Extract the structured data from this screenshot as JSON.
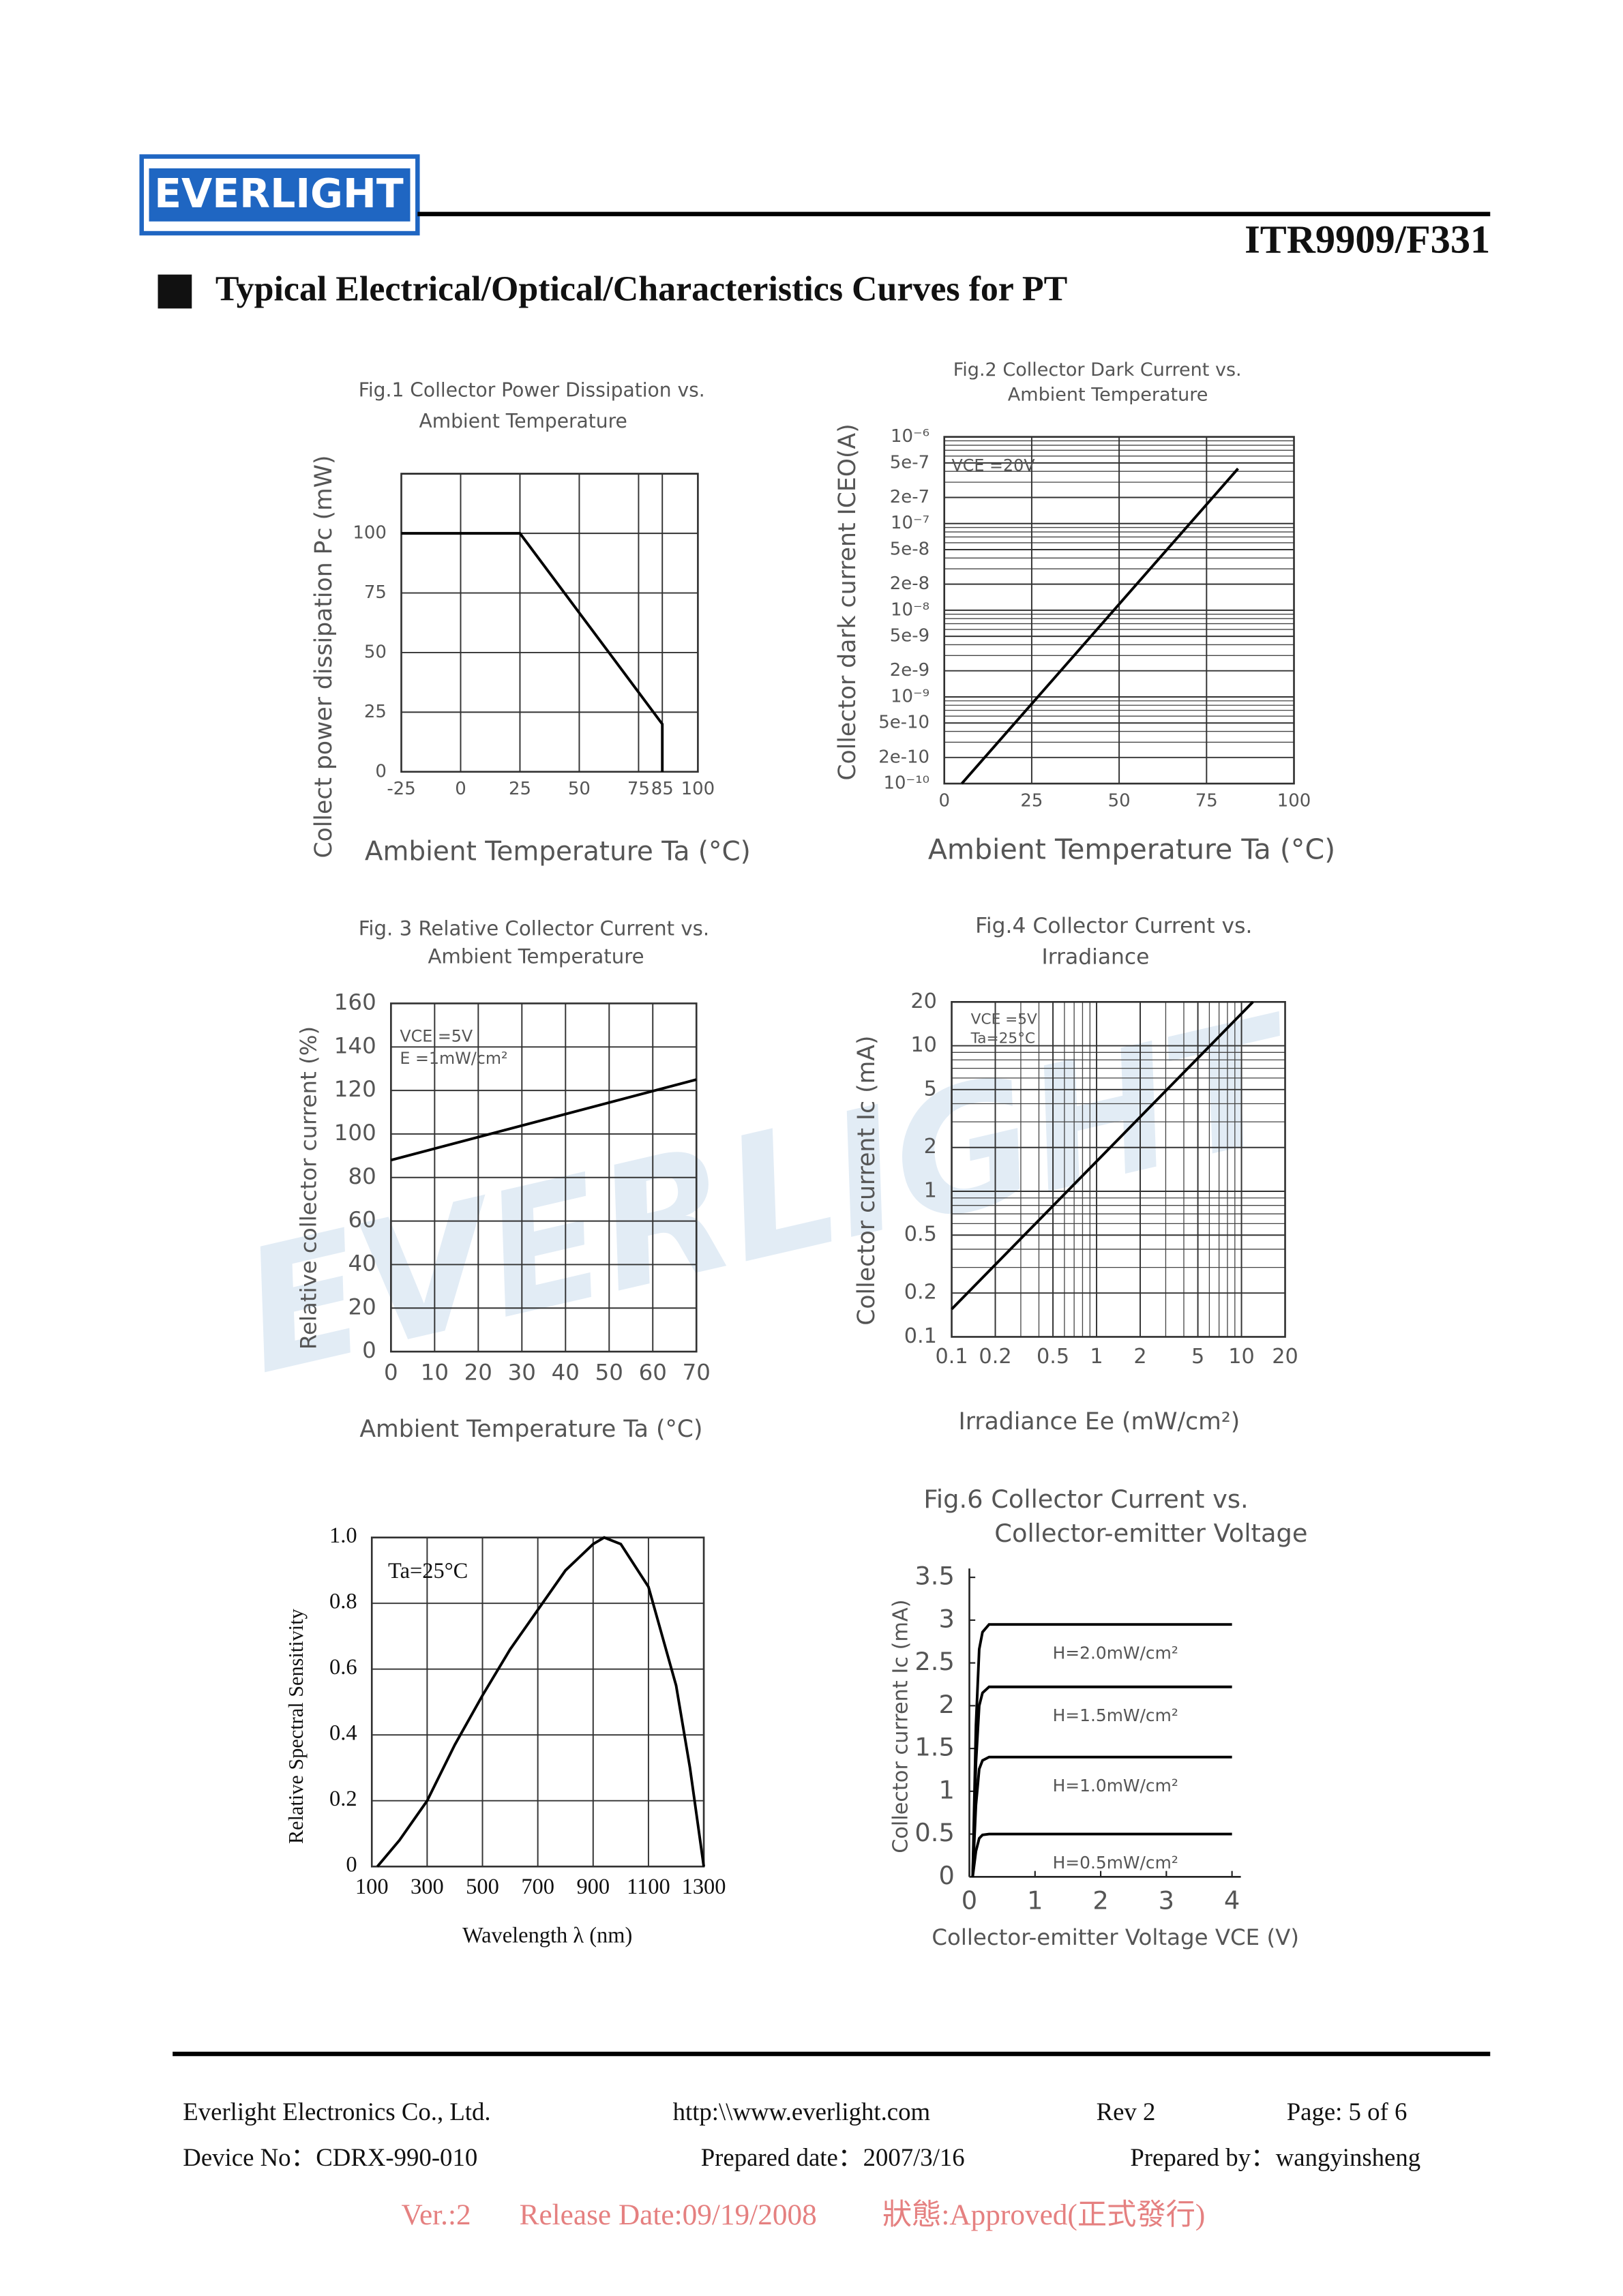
{
  "header": {
    "logo": "EVERLIGHT",
    "part_number": "ITR9909/F331",
    "section_title": "Typical Electrical/Optical/Characteristics Curves for PT"
  },
  "watermark": "EVERLIGHT",
  "chart_data": [
    {
      "type": "line",
      "title": [
        "Fig.1 Collector Power Dissipation vs.",
        "Ambient Temperature"
      ],
      "xlabel": "Ambient Temperature Ta (°C)",
      "ylabel": "Collect power dissipation Pc (mW)",
      "x": [
        -25,
        25,
        85,
        85
      ],
      "values": [
        100,
        100,
        20,
        0
      ],
      "color": "#000000",
      "xlim": [
        -25,
        100
      ],
      "xticks": [
        -25,
        0,
        25,
        50,
        75,
        85,
        100
      ],
      "ylim": [
        0,
        125
      ],
      "yticks": [
        0,
        25,
        50,
        75,
        100
      ],
      "grid": true
    },
    {
      "type": "line",
      "title": [
        "Fig.2 Collector Dark Current vs.",
        "Ambient Temperature"
      ],
      "xlabel": "Ambient Temperature Ta (°C)",
      "ylabel": "Collector dark current ICEO(A)",
      "annotations": [
        "VCE =20V"
      ],
      "x": [
        5,
        84
      ],
      "values": [
        1e-10,
        4.3e-07
      ],
      "color": "#000000",
      "xlim": [
        0,
        100
      ],
      "xticks": [
        0,
        25,
        50,
        75,
        100
      ],
      "ylim": [
        1e-10,
        1e-06
      ],
      "yscale": "log",
      "yticks": [
        {
          "value": 1e-06,
          "label": "10⁻⁶"
        },
        5e-07,
        2e-07,
        {
          "value": 1e-07,
          "label": "10⁻⁷"
        },
        5e-08,
        2e-08,
        {
          "value": 1e-08,
          "label": "10⁻⁸"
        },
        5e-09,
        2e-09,
        {
          "value": 1e-09,
          "label": "10⁻⁹"
        },
        5e-10,
        2e-10,
        {
          "value": 1e-10,
          "label": "10⁻¹⁰"
        }
      ],
      "grid": true
    },
    {
      "type": "line",
      "title": [
        "Fig. 3 Relative Collector Current vs.",
        "Ambient Temperature"
      ],
      "xlabel": "Ambient Temperature Ta (°C)",
      "ylabel": "Relative collector current (%)",
      "annotations": [
        "VCE =5V",
        "E =1mW/cm²"
      ],
      "x": [
        0,
        70
      ],
      "values": [
        88,
        125
      ],
      "color": "#000000",
      "xlim": [
        0,
        70
      ],
      "xticks": [
        0,
        10,
        20,
        30,
        40,
        50,
        60,
        70
      ],
      "ylim": [
        0,
        160
      ],
      "yticks": [
        0,
        20,
        40,
        60,
        80,
        100,
        120,
        140,
        160
      ],
      "grid": true
    },
    {
      "type": "line",
      "title": [
        "Fig.4 Collector Current vs.",
        "Irradiance"
      ],
      "xlabel": "Irradiance Ee (mW/cm²)",
      "ylabel": "Collector current Ic (mA)",
      "annotations": [
        "VCE =5V",
        "Ta=25°C"
      ],
      "x": [
        0.1,
        12
      ],
      "values": [
        0.155,
        20
      ],
      "color": "#000000",
      "xlim": [
        0.1,
        20
      ],
      "xscale": "log",
      "xticks": [
        0.1,
        0.2,
        0.5,
        1,
        2,
        5,
        10,
        20
      ],
      "ylim": [
        0.1,
        20
      ],
      "yscale": "log",
      "yticks": [
        0.1,
        0.2,
        0.5,
        1,
        2,
        5,
        10,
        20
      ],
      "grid": true
    },
    {
      "type": "line",
      "xlabel": "Wavelength λ (nm)",
      "ylabel": "Relative Spectral Sensitivity",
      "annotations": [
        "Ta=25°C"
      ],
      "x": [
        120,
        200,
        300,
        400,
        500,
        600,
        700,
        800,
        900,
        940,
        1000,
        1100,
        1200,
        1250,
        1300
      ],
      "values": [
        0,
        0.08,
        0.2,
        0.37,
        0.52,
        0.66,
        0.78,
        0.9,
        0.98,
        1.0,
        0.98,
        0.85,
        0.55,
        0.3,
        0
      ],
      "color": "#000000",
      "xlim": [
        100,
        1300
      ],
      "xticks": [
        100,
        300,
        500,
        700,
        900,
        1100,
        1300
      ],
      "ylim": [
        0,
        1
      ],
      "yticks": [
        0,
        0.2,
        0.4,
        0.6,
        0.8,
        {
          "value": 1,
          "label": "1.0"
        }
      ],
      "grid": true
    },
    {
      "type": "line",
      "title": [
        "Fig.6 Collector Current vs.",
        "Collector-emitter Voltage"
      ],
      "xlabel": "Collector-emitter Voltage VCE (V)",
      "ylabel": "Collector current Ic (mA)",
      "x": [
        0.05,
        0.1,
        0.15,
        0.2,
        0.3,
        4
      ],
      "series": [
        {
          "name": "H=2.0mW/cm²",
          "color": "#000000",
          "values": [
            0,
            1.77,
            2.66,
            2.86,
            2.95,
            2.95
          ]
        },
        {
          "name": "H=1.5mW/cm²",
          "color": "#000000",
          "values": [
            0,
            1.33,
            2.0,
            2.15,
            2.22,
            2.22
          ]
        },
        {
          "name": "H=1.0mW/cm²",
          "color": "#000000",
          "values": [
            0,
            0.84,
            1.26,
            1.36,
            1.4,
            1.4
          ]
        },
        {
          "name": "H=0.5mW/cm²",
          "color": "#000000",
          "values": [
            0,
            0.3,
            0.45,
            0.49,
            0.5,
            0.5
          ]
        }
      ],
      "xlim": [
        0,
        4
      ],
      "xticks": [
        0,
        1,
        2,
        3,
        4
      ],
      "ylim": [
        0,
        3.5
      ],
      "yticks": [
        0,
        0.5,
        1,
        1.5,
        2,
        2.5,
        3,
        3.5
      ],
      "grid": false
    }
  ],
  "footer": {
    "row1": [
      "Everlight Electronics Co., Ltd.",
      "http:\\\\www.everlight.com",
      "Rev 2",
      "Page: 5 of 6"
    ],
    "row2": [
      "Device No：CDRX-990-010",
      "Prepared date：2007/3/16",
      "Prepared by：wangyinsheng"
    ],
    "release": [
      "Ver.:2",
      "Release Date:09/19/2008",
      "狀態:Approved(正式發行)"
    ]
  }
}
